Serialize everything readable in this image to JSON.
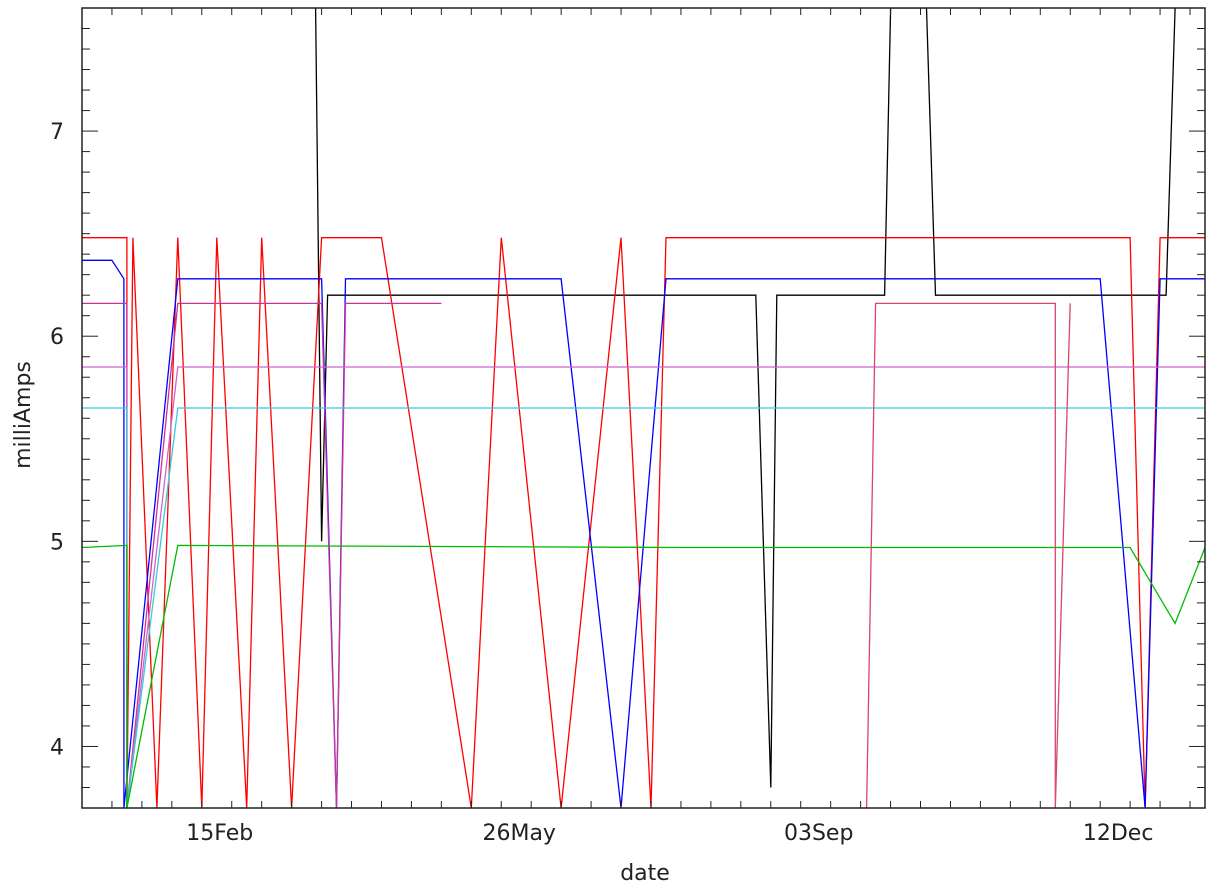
{
  "chart_data": {
    "type": "line",
    "title": "",
    "xlabel": "date",
    "ylabel": "milliAmps",
    "x_ticks": [
      "15Feb",
      "26May",
      "03Sep",
      "12Dec"
    ],
    "x_tick_days": [
      46,
      146,
      246,
      346
    ],
    "xlim_days": [
      0,
      375
    ],
    "ylim": [
      3.7,
      7.6
    ],
    "y_ticks": [
      4,
      5,
      6,
      7
    ],
    "grid": false,
    "legend": "none",
    "series": [
      {
        "color": "#000000",
        "baseline": 6.2,
        "points": [
          [
            78,
            7.6
          ],
          [
            80,
            5.0
          ],
          [
            82,
            6.2
          ],
          [
            150,
            6.2
          ],
          [
            160,
            6.2
          ],
          [
            225,
            6.2
          ],
          [
            230,
            3.8
          ],
          [
            232,
            6.2
          ],
          [
            268,
            6.2
          ],
          [
            270,
            7.6
          ],
          [
            282,
            7.6
          ],
          [
            285,
            6.2
          ],
          [
            362,
            6.2
          ],
          [
            365,
            7.6
          ]
        ]
      },
      {
        "color": "#ff0000",
        "baseline": 6.48,
        "points": [
          [
            0,
            6.48
          ],
          [
            15,
            6.48
          ],
          [
            15,
            3.7
          ],
          [
            17,
            6.48
          ],
          [
            25,
            3.7
          ],
          [
            32,
            6.48
          ],
          [
            40,
            3.7
          ],
          [
            45,
            6.48
          ],
          [
            55,
            3.7
          ],
          [
            60,
            6.48
          ],
          [
            70,
            3.7
          ],
          [
            80,
            6.48
          ],
          [
            100,
            6.48
          ],
          [
            130,
            3.7
          ],
          [
            140,
            6.48
          ],
          [
            160,
            3.7
          ],
          [
            180,
            6.48
          ],
          [
            190,
            3.7
          ],
          [
            195,
            6.48
          ],
          [
            265,
            6.48
          ],
          [
            350,
            6.48
          ],
          [
            355,
            3.7
          ],
          [
            360,
            6.48
          ],
          [
            375,
            6.48
          ]
        ]
      },
      {
        "color": "#0000ff",
        "baseline": 6.28,
        "points": [
          [
            0,
            6.37
          ],
          [
            10,
            6.37
          ],
          [
            14,
            6.28
          ],
          [
            14,
            3.7
          ],
          [
            32,
            6.28
          ],
          [
            80,
            6.28
          ],
          [
            85,
            3.7
          ],
          [
            88,
            6.28
          ],
          [
            160,
            6.28
          ],
          [
            180,
            3.7
          ],
          [
            195,
            6.28
          ],
          [
            270,
            6.28
          ],
          [
            340,
            6.28
          ],
          [
            355,
            3.7
          ],
          [
            360,
            6.28
          ],
          [
            375,
            6.28
          ]
        ]
      },
      {
        "color": "#cc3399",
        "baseline": 6.16,
        "points": [
          [
            0,
            6.16
          ],
          [
            15,
            6.16
          ],
          [
            15,
            3.7
          ],
          [
            32,
            6.16
          ],
          [
            60,
            6.16
          ],
          [
            80,
            6.16
          ],
          [
            85,
            3.7
          ],
          [
            88,
            6.16
          ],
          [
            120,
            6.16
          ]
        ]
      },
      {
        "color": "#cc66cc",
        "baseline": 5.85,
        "points": [
          [
            0,
            5.85
          ],
          [
            15,
            5.85
          ],
          [
            15,
            3.7
          ],
          [
            32,
            5.85
          ],
          [
            200,
            5.85
          ],
          [
            350,
            5.85
          ],
          [
            375,
            5.85
          ]
        ]
      },
      {
        "color": "#33ccdd",
        "baseline": 5.65,
        "points": [
          [
            0,
            5.65
          ],
          [
            15,
            5.65
          ],
          [
            15,
            3.7
          ],
          [
            32,
            5.65
          ],
          [
            200,
            5.65
          ],
          [
            350,
            5.65
          ],
          [
            375,
            5.65
          ]
        ]
      },
      {
        "color": "#00bb00",
        "baseline": 4.98,
        "points": [
          [
            0,
            4.97
          ],
          [
            15,
            4.98
          ],
          [
            15,
            3.7
          ],
          [
            32,
            4.98
          ],
          [
            200,
            4.97
          ],
          [
            350,
            4.97
          ],
          [
            365,
            4.6
          ],
          [
            375,
            4.97
          ]
        ]
      },
      {
        "color": "#dd4466",
        "baseline": 6.16,
        "points": [
          [
            262,
            3.7
          ],
          [
            265,
            6.16
          ],
          [
            290,
            6.16
          ],
          [
            325,
            6.16
          ],
          [
            325,
            3.7
          ],
          [
            330,
            6.16
          ]
        ]
      }
    ]
  }
}
